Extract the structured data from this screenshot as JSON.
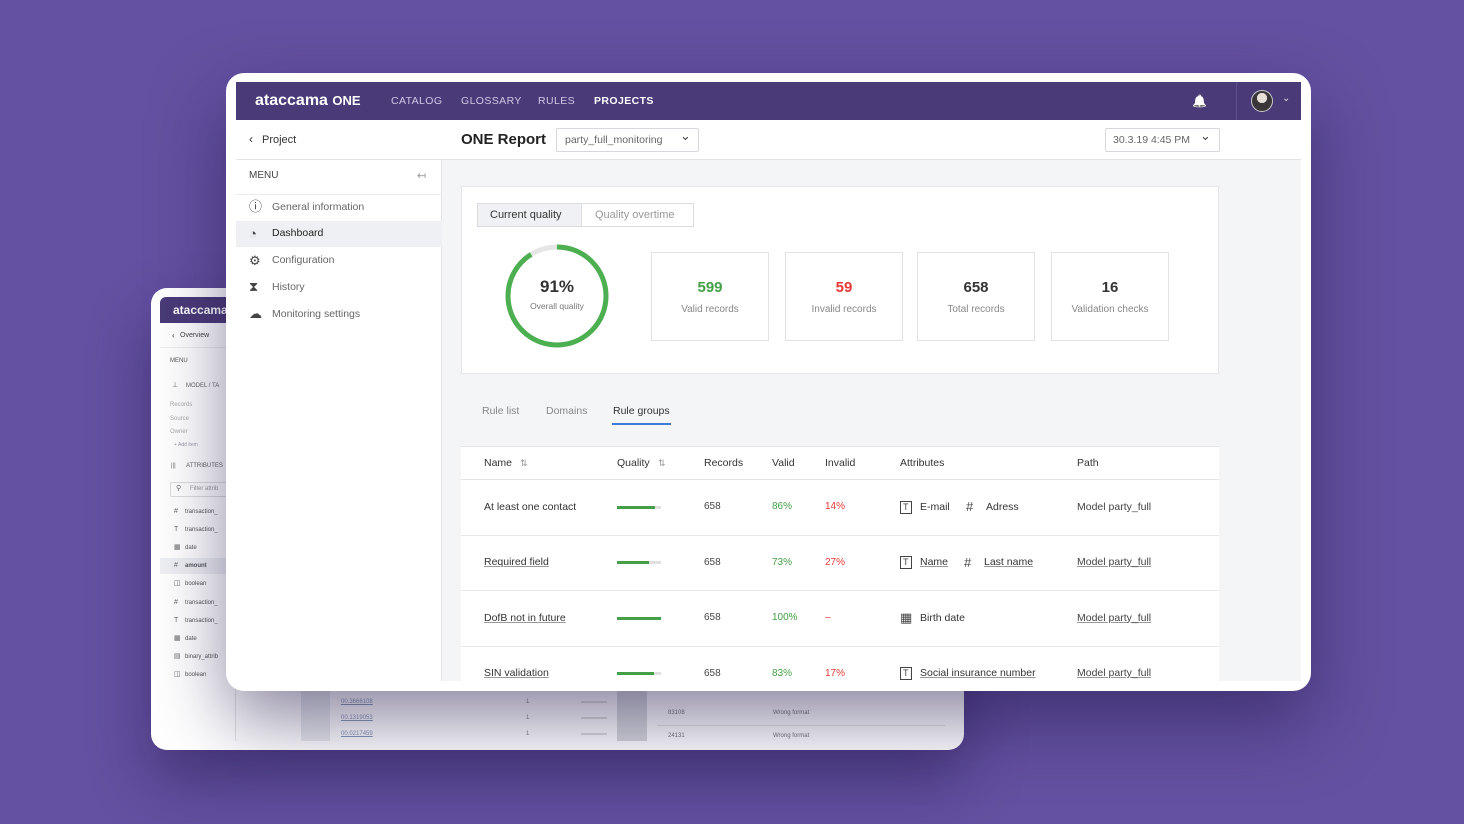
{
  "back_window": {
    "logo": "ataccama",
    "back_link": "Overview",
    "menu_title": "MENU",
    "model_section": "MODEL / TA",
    "model_fields": [
      "Records",
      "Source",
      "Owner"
    ],
    "add_item": "+ Add item",
    "attributes_section": "ATTRIBUTES",
    "filter_placeholder": "Filter attrib",
    "attributes": [
      {
        "icon": "#",
        "name": "transaction_"
      },
      {
        "icon": "T",
        "name": "transaction_"
      },
      {
        "icon": "▦",
        "name": "date"
      },
      {
        "icon": "#",
        "name": "amount"
      },
      {
        "icon": "◫",
        "name": "boolean"
      },
      {
        "icon": "#",
        "name": "transaction_"
      },
      {
        "icon": "T",
        "name": "transaction_"
      },
      {
        "icon": "▦",
        "name": "date"
      },
      {
        "icon": "▤",
        "name": "binary_attrib"
      },
      {
        "icon": "◫",
        "name": "boolean"
      }
    ],
    "values_table": [
      [
        "00.3666108",
        "1"
      ],
      [
        "00.1319053",
        "1"
      ],
      [
        "00.0217459",
        "1"
      ]
    ],
    "errors_table": [
      [
        "83108",
        "Wrong format"
      ],
      [
        "24131",
        "Wrong format"
      ]
    ]
  },
  "main_window": {
    "logo": {
      "brand": "ataccama",
      "product": "ONE"
    },
    "nav": [
      "CATALOG",
      "GLOSSARY",
      "RULES",
      "PROJECTS"
    ],
    "back_link": "Project",
    "page_title": "ONE Report",
    "project_select": "party_full_monitoring",
    "date_select": "30.3.19 4:45 PM",
    "menu": {
      "title": "MENU",
      "items": [
        "General information",
        "Dashboard",
        "Configuration",
        "History",
        "Monitoring settings"
      ]
    },
    "quality_tabs": [
      "Current quality",
      "Quality overtime"
    ],
    "gauge": {
      "value": 91,
      "label": "91%",
      "caption": "Overall quality"
    },
    "stats": [
      {
        "value": 599,
        "label": "Valid records"
      },
      {
        "value": 59,
        "label": "Invalid records"
      },
      {
        "value": 658,
        "label": "Total records"
      },
      {
        "value": 16,
        "label": "Validation checks"
      }
    ],
    "table_tabs": [
      "Rule list",
      "Domains",
      "Rule groups"
    ],
    "table": {
      "headers": [
        {
          "text": "Name",
          "sortable": true
        },
        {
          "text": "Quality",
          "sortable": true
        },
        {
          "text": "Records",
          "sortable": false
        },
        {
          "text": "Valid",
          "sortable": false
        },
        {
          "text": "Invalid",
          "sortable": false
        },
        {
          "text": "Attributes",
          "sortable": false
        },
        {
          "text": "Path",
          "sortable": false
        }
      ],
      "rows": [
        {
          "name": "At least one contact",
          "quality": 86,
          "records": 658,
          "valid": "86%",
          "invalid": "14%",
          "attributes": [
            {
              "icon": "T",
              "name": "E-mail"
            },
            {
              "icon": "#",
              "name": "Adress"
            }
          ],
          "path": "Model party_full"
        },
        {
          "name": "Required field",
          "quality": 73,
          "records": 658,
          "valid": "73%",
          "invalid": "27%",
          "attributes": [
            {
              "icon": "T",
              "name": "Name"
            },
            {
              "icon": "#",
              "name": "Last name"
            }
          ],
          "path": "Model party_full"
        },
        {
          "name": "DofB not in future",
          "quality": 100,
          "records": 658,
          "valid": "100%",
          "invalid": "–",
          "attributes": [
            {
              "icon": "▦",
              "name": "Birth date"
            }
          ],
          "path": "Model party_full"
        },
        {
          "name": "SIN validation",
          "quality": 83,
          "records": 658,
          "valid": "83%",
          "invalid": "17%",
          "attributes": [
            {
              "icon": "T",
              "name": "Social insurance number"
            }
          ],
          "path": "Model party_full"
        }
      ]
    }
  }
}
